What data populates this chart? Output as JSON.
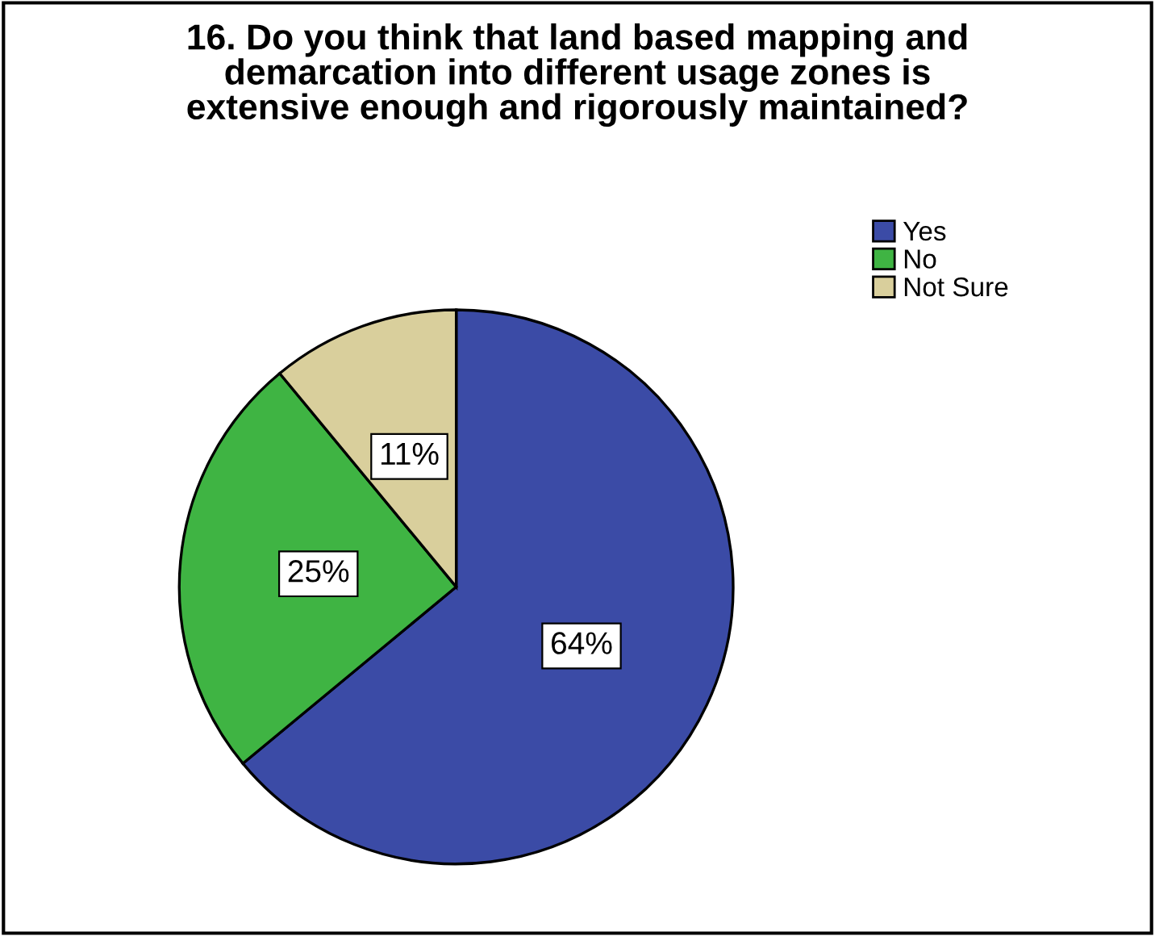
{
  "chart_data": {
    "type": "pie",
    "title": "16. Do you think that land based mapping and\ndemarcation into different usage zones is\nextensive enough and rigorously maintained?",
    "categories": [
      "Yes",
      "No",
      "Not Sure"
    ],
    "values": [
      64,
      25,
      11
    ],
    "colors": [
      "#3b4ba6",
      "#3fb443",
      "#d9cf9c"
    ],
    "value_labels": [
      "64%",
      "25%",
      "11%"
    ],
    "legend": "top right"
  }
}
